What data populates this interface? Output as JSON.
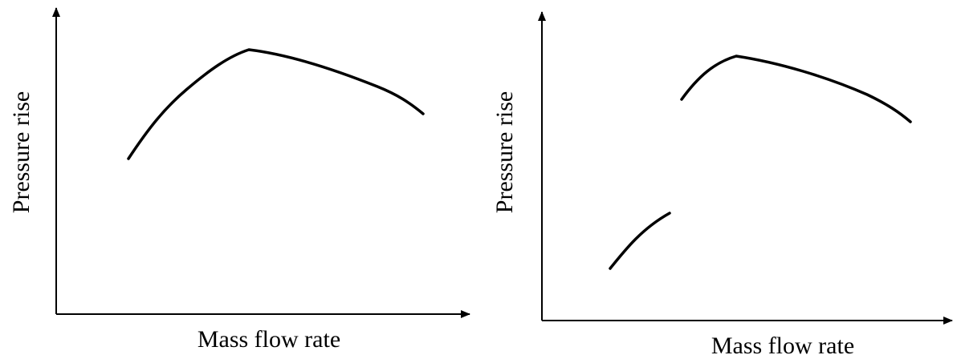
{
  "panels": [
    {
      "x_label": "Mass flow rate",
      "y_label": "Pressure rise"
    },
    {
      "x_label": "Mass flow rate",
      "y_label": "Pressure rise"
    }
  ]
}
